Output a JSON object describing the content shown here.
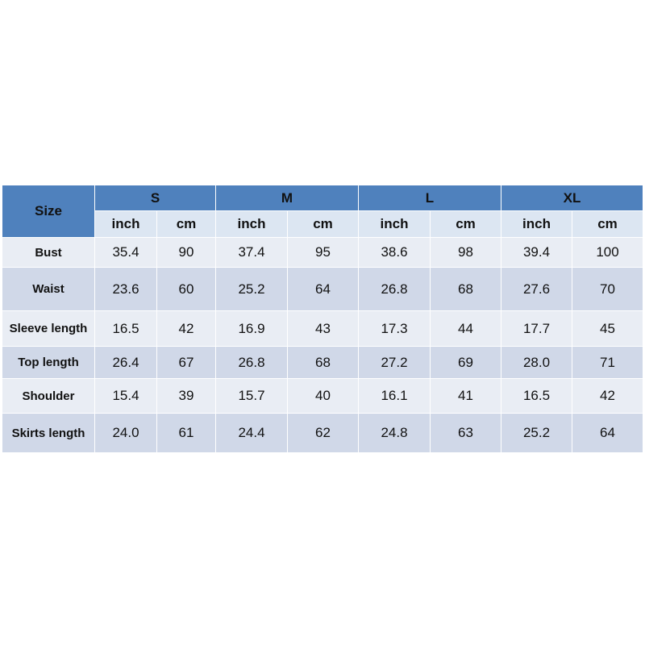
{
  "table": {
    "size_label": "Size",
    "sizes": [
      "S",
      "M",
      "L",
      "XL"
    ],
    "units": [
      "inch",
      "cm",
      "inch",
      "cm",
      "inch",
      "cm",
      "inch",
      "cm"
    ],
    "rows": [
      {
        "label": "Bust",
        "values": [
          "35.4",
          "90",
          "37.4",
          "95",
          "38.6",
          "98",
          "39.4",
          "100"
        ]
      },
      {
        "label": "Waist",
        "values": [
          "23.6",
          "60",
          "25.2",
          "64",
          "26.8",
          "68",
          "27.6",
          "70"
        ]
      },
      {
        "label": "Sleeve length",
        "values": [
          "16.5",
          "42",
          "16.9",
          "43",
          "17.3",
          "44",
          "17.7",
          "45"
        ]
      },
      {
        "label": "Top length",
        "values": [
          "26.4",
          "67",
          "26.8",
          "68",
          "27.2",
          "69",
          "28.0",
          "71"
        ]
      },
      {
        "label": "Shoulder",
        "values": [
          "15.4",
          "39",
          "15.7",
          "40",
          "16.1",
          "41",
          "16.5",
          "42"
        ]
      },
      {
        "label": "Skirts length",
        "values": [
          "24.0",
          "61",
          "24.4",
          "62",
          "24.8",
          "63",
          "25.2",
          "64"
        ]
      }
    ]
  }
}
